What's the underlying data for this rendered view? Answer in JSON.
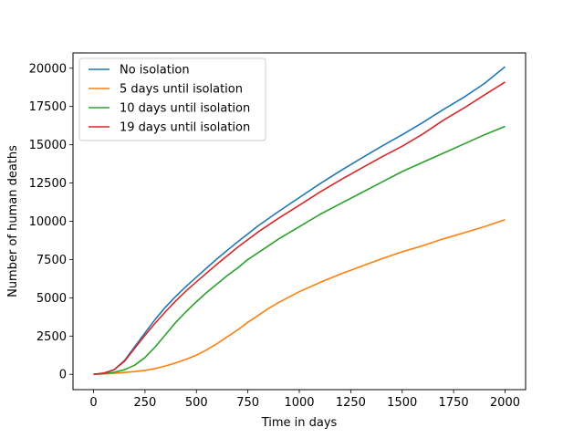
{
  "chart_data": {
    "type": "line",
    "title": "",
    "xlabel": "Time in days",
    "ylabel": "Number of human deaths",
    "xlim": [
      -100,
      2100
    ],
    "ylim": [
      -1000,
      21000
    ],
    "xticks": [
      0,
      250,
      500,
      750,
      1000,
      1250,
      1500,
      1750,
      2000
    ],
    "yticks": [
      0,
      2500,
      5000,
      7500,
      10000,
      12500,
      15000,
      17500,
      20000
    ],
    "grid": false,
    "legend_position": "top-left",
    "series": [
      {
        "name": "No isolation",
        "color": "#1f77b4",
        "x": [
          0,
          50,
          100,
          150,
          200,
          250,
          300,
          350,
          400,
          450,
          500,
          600,
          700,
          800,
          900,
          1000,
          1100,
          1200,
          1300,
          1400,
          1500,
          1600,
          1700,
          1800,
          1900,
          2000
        ],
        "y": [
          0,
          80,
          300,
          900,
          1800,
          2700,
          3600,
          4400,
          5100,
          5750,
          6350,
          7550,
          8650,
          9700,
          10650,
          11550,
          12450,
          13300,
          14100,
          14900,
          15650,
          16450,
          17300,
          18100,
          19000,
          20100
        ]
      },
      {
        "name": "5 days until isolation",
        "color": "#ff7f0e",
        "x": [
          0,
          50,
          100,
          150,
          200,
          250,
          300,
          350,
          400,
          450,
          500,
          550,
          600,
          650,
          700,
          750,
          800,
          850,
          900,
          1000,
          1100,
          1200,
          1300,
          1400,
          1500,
          1600,
          1700,
          1800,
          1900,
          2000
        ],
        "y": [
          0,
          30,
          70,
          120,
          180,
          260,
          380,
          550,
          750,
          980,
          1250,
          1600,
          2000,
          2450,
          2900,
          3400,
          3850,
          4300,
          4700,
          5400,
          6000,
          6550,
          7050,
          7550,
          8000,
          8400,
          8850,
          9250,
          9650,
          10100
        ]
      },
      {
        "name": "10 days until isolation",
        "color": "#2ca02c",
        "x": [
          0,
          50,
          100,
          150,
          200,
          250,
          300,
          350,
          400,
          450,
          500,
          550,
          600,
          650,
          700,
          750,
          800,
          900,
          1000,
          1100,
          1200,
          1300,
          1400,
          1500,
          1600,
          1700,
          1800,
          1900,
          2000
        ],
        "y": [
          0,
          40,
          130,
          300,
          600,
          1100,
          1800,
          2600,
          3400,
          4100,
          4750,
          5350,
          5900,
          6450,
          6950,
          7500,
          7950,
          8850,
          9650,
          10450,
          11150,
          11850,
          12550,
          13250,
          13850,
          14450,
          15050,
          15650,
          16200
        ]
      },
      {
        "name": "19 days until isolation",
        "color": "#d62728",
        "x": [
          0,
          50,
          100,
          150,
          200,
          250,
          300,
          350,
          400,
          450,
          500,
          600,
          700,
          800,
          900,
          1000,
          1100,
          1200,
          1300,
          1400,
          1500,
          1600,
          1700,
          1800,
          1900,
          2000
        ],
        "y": [
          0,
          80,
          300,
          850,
          1700,
          2550,
          3350,
          4100,
          4800,
          5450,
          6050,
          7200,
          8300,
          9300,
          10200,
          11050,
          11900,
          12700,
          13450,
          14200,
          14900,
          15700,
          16600,
          17400,
          18250,
          19100
        ]
      }
    ]
  }
}
